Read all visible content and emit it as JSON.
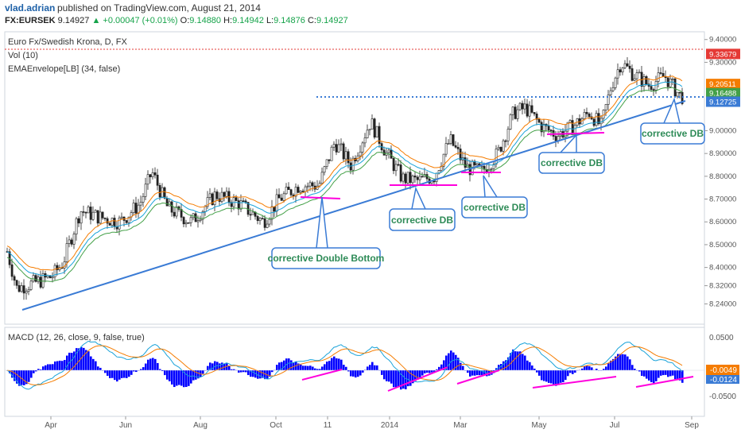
{
  "header": {
    "author": "vlad.adrian",
    "published": "published on TradingView.com, August 21, 2014",
    "symbol": "FX:EURSEK",
    "last": "9.14927",
    "change": "▲ +0.00047 (+0.01%)",
    "open_label": "O:",
    "open": "9.14880",
    "high_label": "H:",
    "high": "9.14942",
    "low_label": "L:",
    "low": "9.14876",
    "close_label": "C:",
    "close": "9.14927"
  },
  "main_panel": {
    "title": "Euro Fx/Swedish Krona, D, FX",
    "vol_label": "Vol (10)",
    "ema_label": "EMAEnvelope[LB] (34, false)",
    "price_ticks": [
      "9.40000",
      "9.30000",
      "9.00000",
      "8.90000",
      "8.80000",
      "8.70000",
      "8.60000",
      "8.50000",
      "8.40000",
      "8.32000",
      "8.24000"
    ],
    "price_badges": [
      {
        "text": "9.33679",
        "color": "#e53935"
      },
      {
        "text": "9.20511",
        "color": "#f57c00"
      },
      {
        "text": "9.16488",
        "color": "#43a047"
      },
      {
        "text": "9.12725",
        "color": "#3a7bd5"
      }
    ]
  },
  "annotations": {
    "db_main": "corrective Double Bottom",
    "db1": "corrective DB",
    "db2": "corrective DB",
    "db3": "corrective DB",
    "db4": "corrective DB"
  },
  "macd_panel": {
    "label": "MACD (12, 26, close, 9, false, true)",
    "ticks": [
      "0.0500",
      "-0.0500"
    ],
    "badges": [
      {
        "text": "-0.0049",
        "color": "#f57c00"
      },
      {
        "text": "-0.0124",
        "color": "#3a7bd5"
      }
    ]
  },
  "x_axis": {
    "labels": [
      "Apr",
      "Jun",
      "Aug",
      "Oct",
      "11",
      "2014",
      "Mar",
      "May",
      "Jul",
      "Sep"
    ]
  },
  "colors": {
    "price_line": "#3a7bd5",
    "orange_line": "#f57c00",
    "green_line": "#43a047",
    "trendline": "#3a7bd5",
    "support_marker": "#ff00dd",
    "resistance_dotted": "#3a7bd5",
    "high_dotted": "#e53935",
    "histogram": "#0000ff"
  },
  "chart_data": {
    "type": "line",
    "title": "Euro Fx/Swedish Krona, D, FX",
    "x": [
      "Apr",
      "Jun",
      "Aug",
      "Oct",
      "11",
      "2014",
      "Mar",
      "May",
      "Jul",
      "Sep"
    ],
    "ylim": [
      8.2,
      9.42
    ],
    "series": [
      {
        "name": "EURSEK",
        "values": [
          8.31,
          8.62,
          8.66,
          8.7,
          8.97,
          8.82,
          8.81,
          8.99,
          9.25,
          9.15
        ]
      }
    ],
    "grid": false,
    "legend": "none"
  }
}
